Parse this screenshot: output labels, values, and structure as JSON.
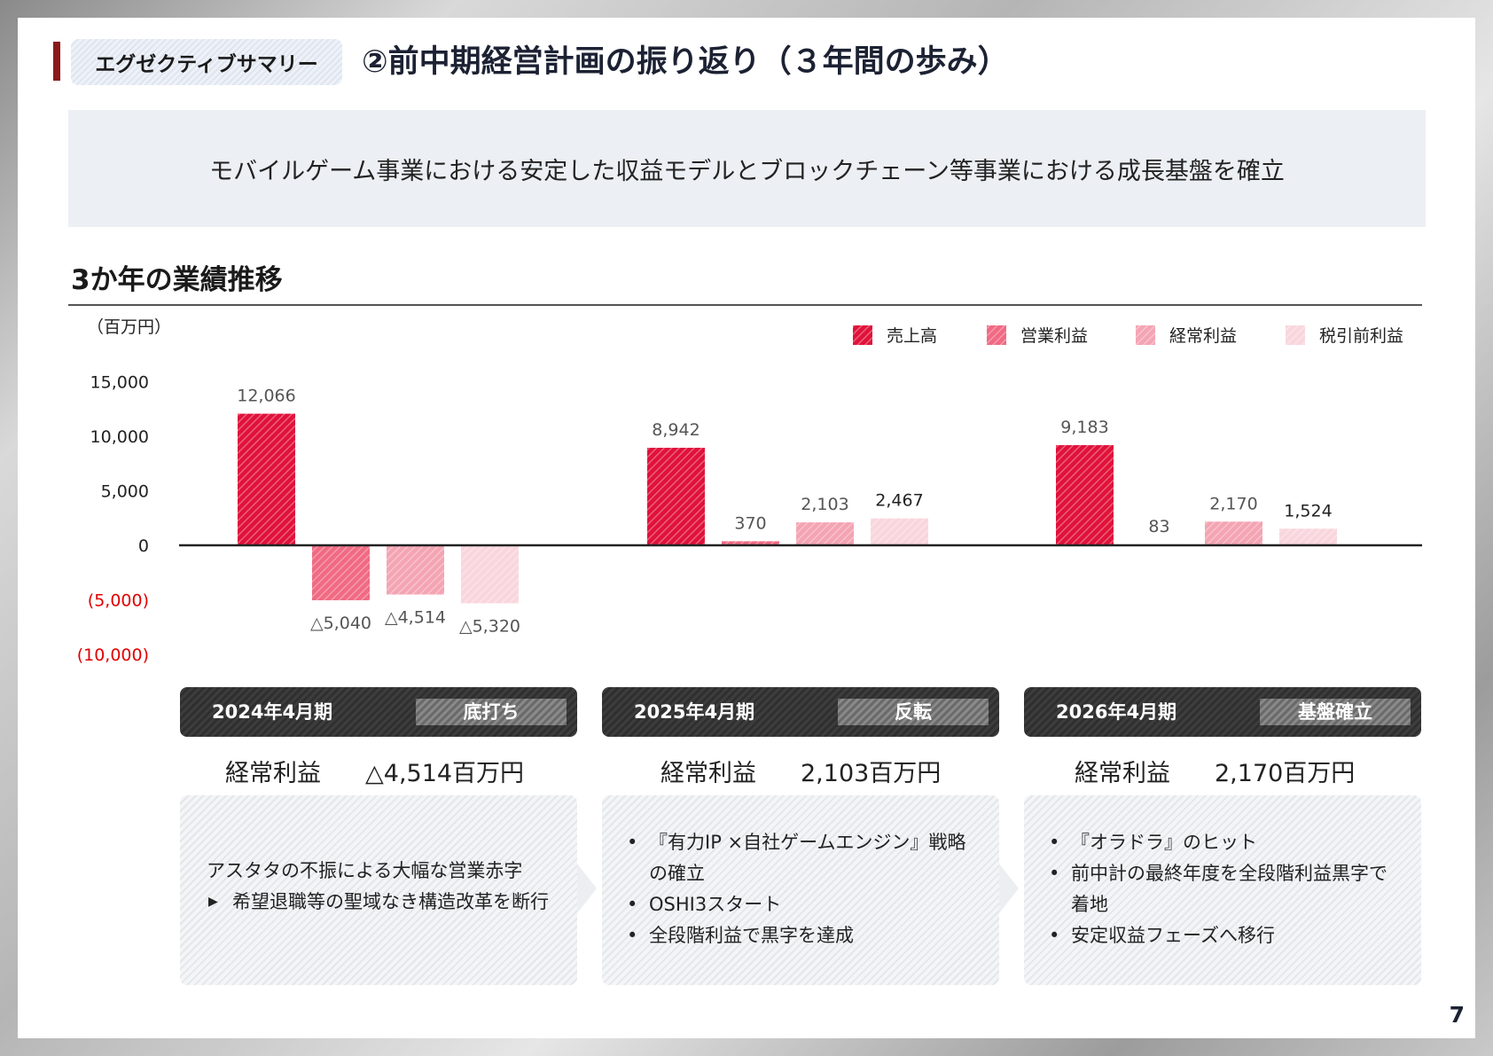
{
  "header": {
    "tag": "エグゼクティブサマリー",
    "title": "②前中期経営計画の振り返り（３年間の歩み）"
  },
  "banner": "モバイルゲーム事業における安定した収益モデルとブロックチェーン等事業における成長基盤を確立",
  "section_title": "3か年の業績推移",
  "chart_data": {
    "type": "bar",
    "unit_label": "（百万円）",
    "categories": [
      "2024年4月期",
      "2025年4月期",
      "2026年4月期"
    ],
    "series": [
      {
        "name": "売上高",
        "values": [
          12066,
          8942,
          9183
        ],
        "labels": [
          "12,066",
          "8,942",
          "9,183"
        ]
      },
      {
        "name": "営業利益",
        "values": [
          -5040,
          370,
          83
        ],
        "labels": [
          "△5,040",
          "370",
          "83"
        ]
      },
      {
        "name": "経常利益",
        "values": [
          -4514,
          2103,
          2170
        ],
        "labels": [
          "△4,514",
          "2,103",
          "2,170"
        ]
      },
      {
        "name": "税引前利益",
        "values": [
          -5320,
          2467,
          1524
        ],
        "labels": [
          "△5,320",
          "2,467",
          "1,524"
        ]
      }
    ],
    "yticks": [
      {
        "value": 15000,
        "label": "15,000"
      },
      {
        "value": 10000,
        "label": "10,000"
      },
      {
        "value": 5000,
        "label": "5,000"
      },
      {
        "value": 0,
        "label": "0"
      },
      {
        "value": -5000,
        "label": "(5,000)"
      },
      {
        "value": -10000,
        "label": "(10,000)"
      }
    ],
    "ylim": [
      -10000,
      15000
    ],
    "legend_position": "top-right",
    "colors": [
      "#e0123a",
      "#f06a83",
      "#f4a4b3",
      "#f9d6dd"
    ],
    "negative_tick_color": "#e00000"
  },
  "periods": [
    {
      "year": "2024年4月期",
      "tag": "底打ち",
      "metric_label": "経常利益",
      "metric_value": "△4,514百万円",
      "lead": "アスタタの不振による大幅な営業赤字",
      "items": [
        "希望退職等の聖域なき構造改革を断行"
      ]
    },
    {
      "year": "2025年4月期",
      "tag": "反転",
      "metric_label": "経常利益",
      "metric_value": "2,103百万円",
      "items": [
        "『有力IP ×自社ゲームエンジン』戦略の確立",
        "OSHI3スタート",
        "全段階利益で黒字を達成"
      ]
    },
    {
      "year": "2026年4月期",
      "tag": "基盤確立",
      "metric_label": "経常利益",
      "metric_value": "2,170百万円",
      "items": [
        "『オラドラ』のヒット",
        "前中計の最終年度を全段階利益黒字で着地",
        "安定収益フェーズへ移行"
      ]
    }
  ],
  "page_number": "7"
}
